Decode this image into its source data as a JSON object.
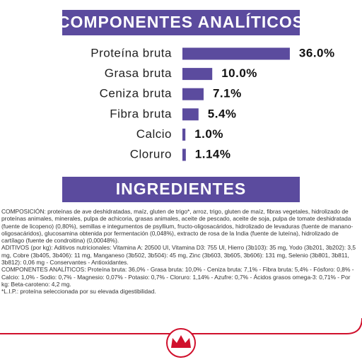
{
  "chart_data": {
    "type": "bar",
    "title": "COMPONENTES ANALÍTICOS",
    "categories": [
      "Proteína bruta",
      "Grasa bruta",
      "Ceniza bruta",
      "Fibra bruta",
      "Calcio",
      "Cloruro"
    ],
    "values": [
      36.0,
      10.0,
      7.1,
      5.4,
      1.0,
      1.14
    ],
    "value_labels": [
      "36.0%",
      "10.0%",
      "7.1%",
      "5.4%",
      "1.0%",
      "1.14%"
    ],
    "color": "#5b4b9e"
  },
  "ingredients": {
    "title": "INGREDIENTES",
    "paragraphs": [
      "COMPOSICIÓN: proteínas de ave deshidratadas, maíz, gluten de trigo*, arroz, trigo, gluten de maíz, fibras vegetales, hidrolizado de proteínas animales, minerales, pulpa de achicoria, grasas animales, aceite de pescado, aceite de soja, pulpa de tomate deshidratada (fuente de licopeno) (0,80%), semillas e integumentos de psyllium, fructo-oligosacáridos, hidrolizado de levaduras (fuente de manano-oligosacáridos), glucosamina obtenida por fermentación (0,048%), extracto de rosa de la India (fuente de luteína), hidrolizado de cartílago (fuente de condroitina) (0,00048%).",
      "ADITIVOS (por kg): Aditivos nutricionales: Vitamina A: 20500 UI, Vitamina D3: 755 UI, Hierro (3b103): 35 mg, Yodo (3b201, 3b202): 3,5 mg, Cobre (3b405, 3b406): 11 mg, Manganeso (3b502, 3b504): 45 mg, Zinc (3b603, 3b605, 3b606): 131 mg, Selenio (3b801, 3b811, 3b812): 0,06 mg - Conservantes - Antioxidantes.",
      "COMPONENTES ANALÍTICOS: Proteína bruta: 36,0% - Grasa bruta: 10,0% - Ceniza bruta: 7,1% - Fibra bruta: 5,4% - Fósforo: 0,8% - Calcio: 1,0% - Sodio: 0,7% - Magnesio: 0,07% - Potasio: 0,7% - Cloruro: 1,14% - Azufre: 0,7% - Ácidos grasos omega-3: 0,71% - Por kg: Beta-caroteno: 4,2 mg.",
      "*L.I.P.: proteína seleccionada por su elevada digestibilidad."
    ]
  }
}
